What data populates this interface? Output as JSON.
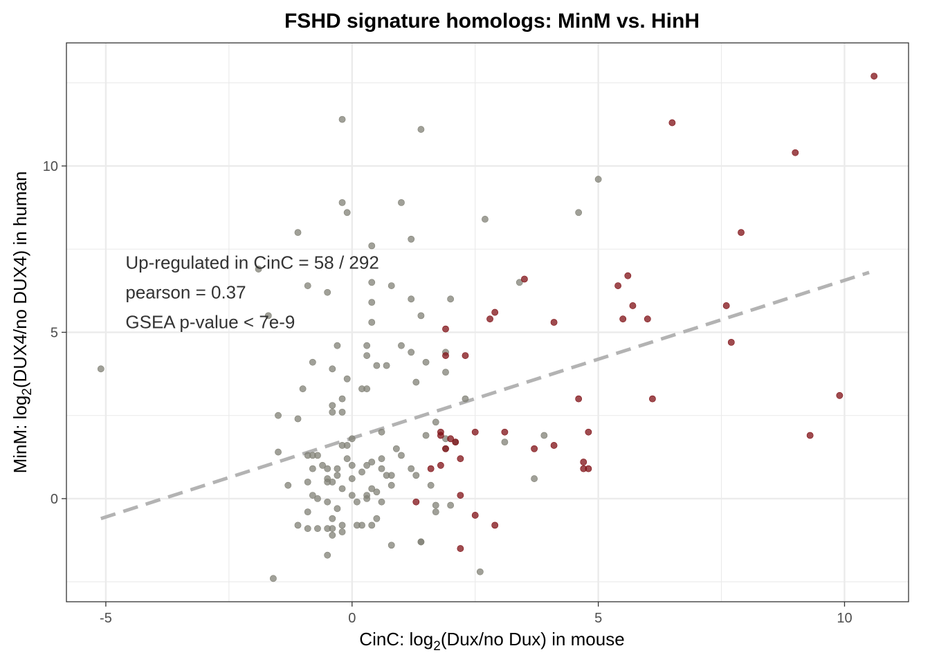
{
  "chart_data": {
    "type": "scatter",
    "title": "FSHD signature homologs: MinM vs. HinH",
    "xlabel": {
      "prefix": "CinC: log",
      "sub": "2",
      "suffix": "(Dux/no Dux) in mouse"
    },
    "ylabel": {
      "prefix": "MinM: log",
      "sub": "2",
      "suffix": "(DUX4/no DUX4) in human"
    },
    "xlim": [
      -5.8,
      11.3
    ],
    "ylim": [
      -3.1,
      13.7
    ],
    "x_ticks": [
      -5,
      0,
      5,
      10
    ],
    "x_tick_labels": [
      "-5",
      "0",
      "5",
      "10"
    ],
    "y_ticks": [
      0,
      5,
      10
    ],
    "y_tick_labels": [
      "0",
      "5",
      "10"
    ],
    "grid": true,
    "annotations": [
      "Up-regulated in CinC = 58 / 292",
      "pearson = 0.37",
      "GSEA p-value < 7e-9"
    ],
    "annotation_anchor": {
      "x": -4.6,
      "y": 7.1
    },
    "trend_line": {
      "style": "dashed",
      "color": "#b3b3b3",
      "x": [
        -5.1,
        10.5
      ],
      "y": [
        -0.6,
        6.8
      ]
    },
    "colors": {
      "other": "#808075",
      "upregulated": "#7f0f14",
      "grid": "#ebebeb",
      "panel_border": "#333333"
    },
    "series": [
      {
        "name": "upregulated",
        "color": "#7f0f14",
        "x": [
          10.6,
          6.5,
          9.0,
          7.9,
          3.5,
          5.4,
          5.6,
          5.7,
          2.9,
          2.8,
          4.1,
          5.5,
          6.0,
          7.6,
          7.7,
          1.9,
          1.9,
          2.3,
          4.6,
          6.1,
          9.9,
          2.5,
          3.1,
          1.8,
          1.8,
          2.0,
          4.8,
          9.3,
          2.1,
          3.7,
          4.1,
          1.9,
          4.7,
          1.8,
          2.2,
          4.7,
          4.8,
          1.6,
          2.2,
          1.3,
          2.5,
          2.9,
          2.2
        ],
        "y": [
          12.7,
          11.3,
          10.4,
          8.0,
          6.6,
          6.4,
          6.7,
          5.8,
          5.6,
          5.4,
          5.3,
          5.4,
          5.4,
          5.8,
          4.7,
          5.1,
          4.3,
          4.3,
          3.0,
          3.0,
          3.1,
          2.0,
          2.0,
          2.0,
          1.9,
          1.8,
          2.0,
          1.9,
          1.7,
          1.5,
          1.6,
          1.5,
          1.1,
          1.0,
          1.2,
          0.9,
          0.9,
          0.9,
          0.1,
          -0.1,
          -0.5,
          -0.8,
          -1.5
        ]
      },
      {
        "name": "other",
        "color": "#808075",
        "x": [
          -5.1,
          -0.2,
          1.4,
          5.0,
          -0.2,
          1.0,
          -0.1,
          2.7,
          4.6,
          -1.1,
          1.2,
          0.4,
          -1.9,
          3.4,
          -0.9,
          0.4,
          0.8,
          -0.5,
          0.4,
          1.2,
          2.0,
          1.4,
          -1.7,
          0.4,
          1.0,
          -0.3,
          0.3,
          1.2,
          1.9,
          -0.8,
          1.5,
          0.5,
          0.7,
          -0.4,
          0.3,
          1.9,
          -0.1,
          1.3,
          0.2,
          -1.0,
          0.3,
          2.3,
          -0.2,
          -0.4,
          -0.2,
          -0.4,
          -1.5,
          1.7,
          -1.1,
          0.6,
          1.5,
          0.0,
          -0.2,
          1.9,
          0.9,
          3.9,
          3.1,
          2.1,
          1.9,
          -0.9,
          -0.8,
          1.0,
          0.6,
          -0.1,
          0.4,
          0.3,
          -0.7,
          -0.6,
          -0.5,
          0.0,
          1.2,
          0.2,
          0.6,
          0.8,
          -0.3,
          -0.8,
          -0.5,
          1.3,
          0.0,
          -0.4,
          1.6,
          -0.9,
          0.4,
          0.8,
          -0.3,
          -1.3,
          0.3,
          -0.5,
          -0.7,
          0.0,
          0.5,
          0.3,
          -0.8,
          -0.2,
          2.0,
          1.7,
          -0.3,
          0.6,
          -1.1,
          -0.9,
          1.7,
          -0.4,
          -0.5,
          0.5,
          -0.2,
          0.2,
          -0.9,
          1.4,
          -0.5,
          -0.4,
          0.8,
          -0.5,
          2.6,
          -1.6,
          3.7,
          -0.7,
          0.1,
          -0.4,
          0.4,
          -0.1,
          1.4,
          0.7,
          0.1,
          -0.2,
          -1.5
        ],
        "y": [
          3.9,
          11.4,
          11.1,
          9.6,
          8.9,
          8.9,
          8.6,
          8.4,
          8.6,
          8.0,
          7.8,
          7.6,
          6.9,
          6.5,
          6.4,
          6.5,
          6.4,
          6.2,
          5.9,
          6.0,
          6.0,
          5.5,
          5.5,
          5.3,
          4.6,
          4.6,
          4.6,
          4.4,
          4.4,
          4.1,
          4.1,
          4.0,
          4.0,
          3.9,
          4.3,
          3.8,
          3.6,
          3.5,
          3.3,
          3.3,
          3.3,
          3.0,
          3.0,
          2.8,
          2.6,
          2.6,
          2.5,
          2.3,
          2.4,
          2.0,
          1.9,
          1.8,
          1.6,
          1.8,
          1.5,
          1.9,
          1.7,
          1.7,
          1.5,
          1.3,
          1.3,
          1.3,
          1.2,
          1.2,
          1.1,
          1.0,
          1.3,
          1.0,
          0.9,
          1.0,
          0.9,
          0.8,
          0.9,
          0.7,
          0.9,
          0.9,
          0.6,
          0.7,
          0.6,
          0.5,
          0.4,
          0.5,
          0.3,
          0.4,
          0.7,
          0.4,
          0.1,
          0.5,
          0.0,
          0.1,
          0.2,
          0.0,
          0.1,
          0.3,
          -0.2,
          -0.2,
          -0.3,
          -0.1,
          -0.8,
          -0.4,
          -0.4,
          -0.6,
          -0.1,
          -0.6,
          -0.8,
          -0.8,
          -0.9,
          -1.3,
          -0.9,
          -0.9,
          -1.4,
          -1.7,
          -2.2,
          -2.4,
          0.6,
          -0.9,
          -0.8,
          -1.1,
          -0.8,
          1.6,
          -1.3,
          0.7,
          -0.1,
          -1.0,
          1.4
        ]
      }
    ]
  }
}
